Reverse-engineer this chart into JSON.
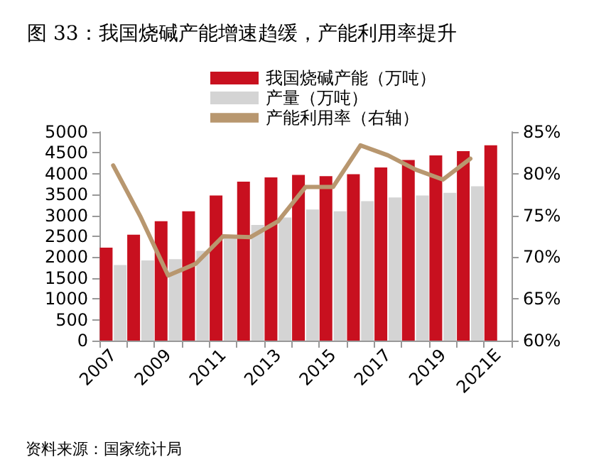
{
  "chart_data": {
    "type": "bar",
    "title": "图 33：我国烧碱产能增速趋缓，产能利用率提升",
    "categories": [
      "2007",
      null,
      "2009",
      null,
      "2011",
      null,
      "2013",
      null,
      "2015",
      null,
      "2017",
      null,
      "2019",
      null,
      "2021E"
    ],
    "series": [
      {
        "name": "我国烧碱产能（万吨）",
        "color": "#c8101f",
        "values": [
          2230,
          2540,
          2860,
          3100,
          3480,
          3810,
          3910,
          3970,
          3940,
          3990,
          4150,
          4330,
          4440,
          4540,
          4680
        ]
      },
      {
        "name": "产量（万吨）",
        "color": "#d4d4d4",
        "values": [
          1810,
          1920,
          1950,
          2150,
          2520,
          2770,
          2950,
          3140,
          3100,
          3340,
          3430,
          3480,
          3540,
          3700,
          null
        ]
      },
      {
        "name": "产能利用率（右轴）",
        "type": "line",
        "axis": "y2",
        "color": "#b8976f",
        "values": [
          81.0,
          74.8,
          67.8,
          69.2,
          72.5,
          72.4,
          74.3,
          78.4,
          78.4,
          83.4,
          82.2,
          80.5,
          79.3,
          81.8,
          null
        ]
      }
    ],
    "ylim": [
      0,
      5000
    ],
    "yticks": [
      0,
      500,
      1000,
      1500,
      2000,
      2500,
      3000,
      3500,
      4000,
      4500,
      5000
    ],
    "y2lim": [
      60,
      85
    ],
    "y2ticks": [
      {
        "value": 60,
        "label": "60%"
      },
      {
        "value": 65,
        "label": "65%"
      },
      {
        "value": 70,
        "label": "70%"
      },
      {
        "value": 75,
        "label": "75%"
      },
      {
        "value": 80,
        "label": "80%"
      },
      {
        "value": 85,
        "label": "85%"
      }
    ],
    "legend": "top",
    "grid": false,
    "marker": "none",
    "annotations": [
      "资料来源：国家统计局"
    ]
  }
}
